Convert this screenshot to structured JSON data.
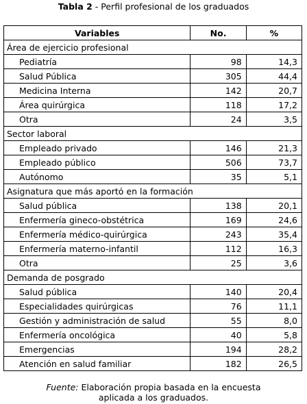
{
  "caption": {
    "label": "Tabla 2",
    "text": " - Perfil profesional de los graduados"
  },
  "table": {
    "headers": [
      "Variables",
      "No.",
      "%"
    ],
    "groups": [
      {
        "title": "Área de ejercicio profesional",
        "rows": [
          {
            "label": "Pediatría",
            "no": "98",
            "pct": "14,3"
          },
          {
            "label": "Salud Pública",
            "no": "305",
            "pct": "44,4"
          },
          {
            "label": "Medicina Interna",
            "no": "142",
            "pct": "20,7"
          },
          {
            "label": "Área quirúrgica",
            "no": "118",
            "pct": "17,2"
          },
          {
            "label": "Otra",
            "no": "24",
            "pct": "3,5"
          }
        ]
      },
      {
        "title": "Sector laboral",
        "rows": [
          {
            "label": "Empleado privado",
            "no": "146",
            "pct": "21,3"
          },
          {
            "label": "Empleado público",
            "no": "506",
            "pct": "73,7"
          },
          {
            "label": "Autónomo",
            "no": "35",
            "pct": "5,1"
          }
        ]
      },
      {
        "title": "Asignatura que más aportó en la formación",
        "rows": [
          {
            "label": "Salud pública",
            "no": "138",
            "pct": "20,1"
          },
          {
            "label": "Enfermería gineco-obstétrica",
            "no": "169",
            "pct": "24,6"
          },
          {
            "label": "Enfermería médico-quirúrgica",
            "no": "243",
            "pct": "35,4"
          },
          {
            "label": "Enfermería materno-infantil",
            "no": "112",
            "pct": "16,3"
          },
          {
            "label": "Otra",
            "no": "25",
            "pct": "3,6"
          }
        ]
      },
      {
        "title": "Demanda de posgrado",
        "rows": [
          {
            "label": "Salud pública",
            "no": "140",
            "pct": "20,4"
          },
          {
            "label": "Especialidades quirúrgicas",
            "no": "76",
            "pct": "11,1"
          },
          {
            "label": "Gestión y administración de salud",
            "no": "55",
            "pct": "8,0"
          },
          {
            "label": "Enfermería oncológica",
            "no": "40",
            "pct": "5,8"
          },
          {
            "label": "Emergencias",
            "no": "194",
            "pct": "28,2"
          },
          {
            "label": "Atención en salud familiar",
            "no": "182",
            "pct": "26,5"
          }
        ]
      }
    ]
  },
  "source": {
    "label": "Fuente:",
    "line1": " Elaboración propia basada en la encuesta",
    "line2": "aplicada a los graduados."
  }
}
